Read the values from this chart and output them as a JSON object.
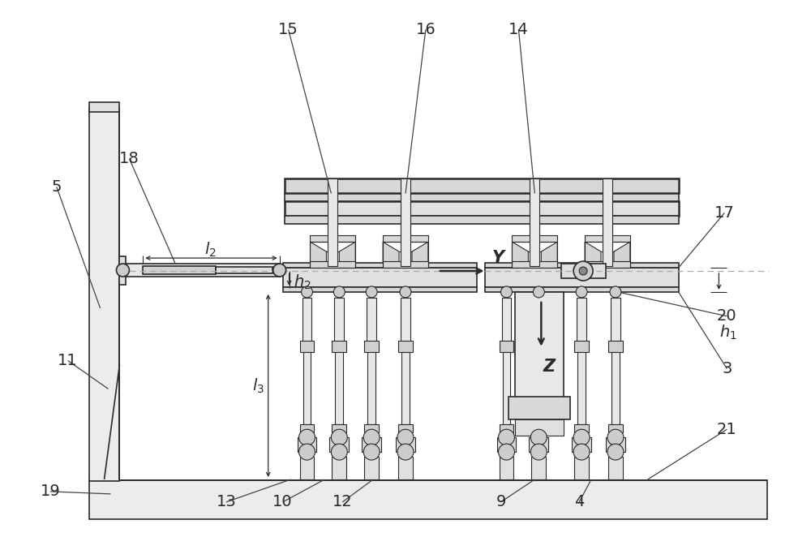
{
  "bg_color": "#ffffff",
  "lc": "#2a2a2a",
  "figsize": [
    10.0,
    6.78
  ],
  "dpi": 100,
  "label_fs": 14
}
